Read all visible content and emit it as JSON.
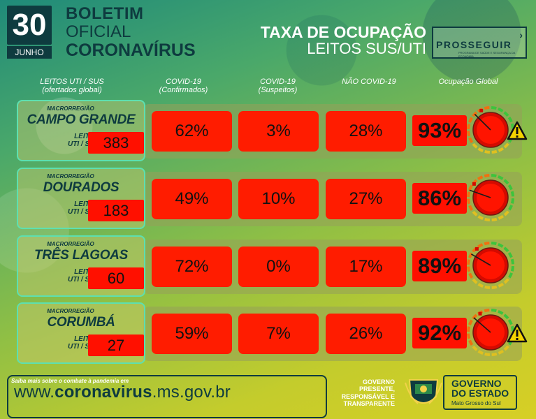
{
  "header": {
    "day": "30",
    "month": "JUNHO",
    "boletim_line1": "BOLETIM",
    "boletim_line2": "OFICIAL",
    "boletim_line3": "CORONAVÍRUS",
    "taxa_line1": "TAXA DE OCUPAÇÃO",
    "taxa_line2": "LEITOS SUS/UTI",
    "prosseguir": "PROSSEGUIR",
    "prosseguir_sub": "PROGRAMA DE SAÚDE E SEGURANÇA DA ECONOMIA"
  },
  "columns": {
    "leitos": "LEITOS UTI / SUS\n(ofertados global)",
    "confirmados": "COVID-19\n(Confirmados)",
    "suspeitos": "COVID-19\n(Suspeitos)",
    "nao_covid": "NÃO COVID-19",
    "global": "Ocupação Global"
  },
  "labels": {
    "macro": "MACRORREGIÃO",
    "leitos": "LEITOS\nUTI / SUS"
  },
  "rows": [
    {
      "region": "CAMPO GRANDE",
      "leitos": "383",
      "confirmados": "62%",
      "suspeitos": "3%",
      "nao_covid": "28%",
      "global": "93%",
      "global_value": 93,
      "warning": true
    },
    {
      "region": "DOURADOS",
      "leitos": "183",
      "confirmados": "49%",
      "suspeitos": "10%",
      "nao_covid": "27%",
      "global": "86%",
      "global_value": 86,
      "warning": false
    },
    {
      "region": "TRÊS LAGOAS",
      "leitos": "60",
      "confirmados": "72%",
      "suspeitos": "0%",
      "nao_covid": "17%",
      "global": "89%",
      "global_value": 89,
      "warning": false
    },
    {
      "region": "CORUMBÁ",
      "leitos": "27",
      "confirmados": "59%",
      "suspeitos": "7%",
      "nao_covid": "26%",
      "global": "92%",
      "global_value": 92,
      "warning": true
    }
  ],
  "footer": {
    "small": "Saiba mais sobre o combate à pandemia em",
    "url_prefix": "www.",
    "url_bold": "coronavirus",
    "url_suffix": ".ms.gov.br",
    "gov_text": "GOVERNO\nPRESENTE,\nRESPONSÁVEL E\nTRANSPARENTE",
    "gov_box_1": "GOVERNO",
    "gov_box_2": "DO ESTADO",
    "gov_box_3": "Mato Grosso do Sul"
  },
  "colors": {
    "cell_red": "#ff1c00",
    "dark_teal": "#0e3b3f",
    "border_green": "#5de0b0"
  }
}
